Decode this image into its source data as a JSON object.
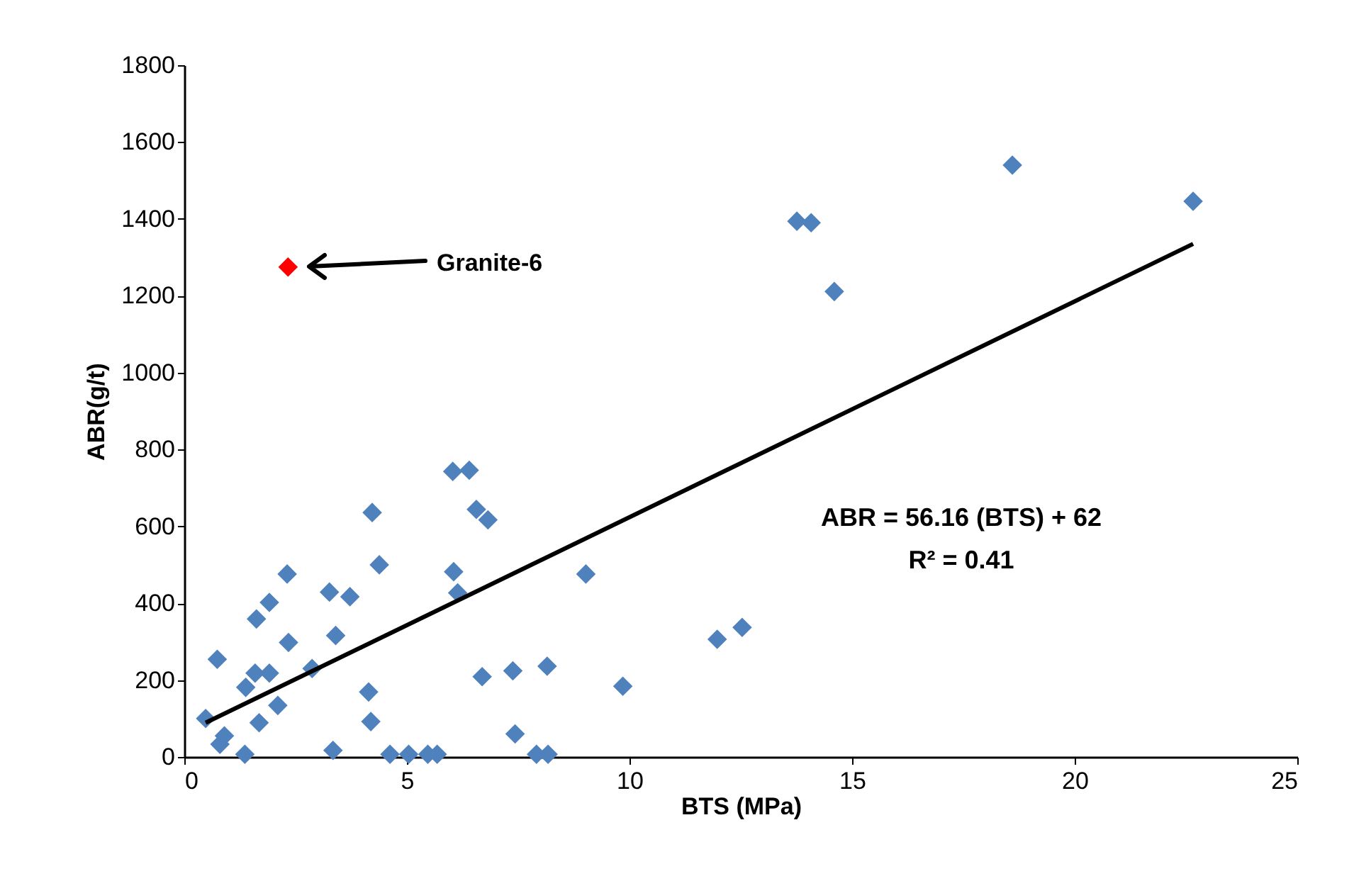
{
  "chart_data": {
    "type": "scatter",
    "xlabel": "BTS (MPa)",
    "ylabel": "ABR(g/t)",
    "xlim": [
      0,
      25
    ],
    "xticks": [
      0,
      5,
      10,
      15,
      20,
      25
    ],
    "ylim": [
      0,
      1800
    ],
    "yticks": [
      0,
      200,
      400,
      600,
      800,
      1000,
      1200,
      1400,
      1600,
      1800
    ],
    "grid": false,
    "marker": "diamond",
    "annotations": [
      "Granite-6",
      "ABR = 56.16 (BTS) + 62",
      "R² = 0.41"
    ],
    "series": [
      {
        "color": "#4f81bd",
        "x": [
          0.48,
          0.74,
          0.9,
          0.8,
          1.36,
          1.38,
          1.59,
          1.91,
          1.68,
          1.62,
          1.91,
          2.1,
          2.31,
          2.34,
          2.87,
          3.26,
          3.72,
          3.4,
          3.34,
          4.14,
          4.19,
          4.22,
          4.38,
          4.62,
          5.04,
          5.47,
          5.68,
          6.03,
          6.4,
          6.56,
          6.82,
          6.05,
          6.14,
          6.69,
          7.38,
          8.15,
          7.43,
          7.91,
          8.17,
          9.02,
          9.85,
          11.97,
          12.53,
          13.76,
          14.08,
          14.6,
          18.6,
          22.66
        ],
        "values": [
          100,
          254,
          55,
          33,
          7,
          181,
          218,
          218,
          89,
          359,
          402,
          134,
          476,
          298,
          230,
          429,
          417,
          316,
          17,
          169,
          92,
          636,
          500,
          7,
          7,
          7,
          7,
          743,
          746,
          644,
          617,
          482,
          427,
          209,
          224,
          236,
          60,
          7,
          7,
          476,
          184,
          306,
          337,
          1394,
          1390,
          1211,
          1540,
          1446
        ]
      },
      {
        "color": "#ff0000",
        "x": [
          2.33
        ],
        "values": [
          1275
        ]
      },
      {
        "type": "line",
        "color": "#000000",
        "line_style": "solid",
        "marker": "none",
        "x": [
          0.48,
          22.66
        ],
        "values": [
          89,
          1335
        ]
      }
    ]
  }
}
